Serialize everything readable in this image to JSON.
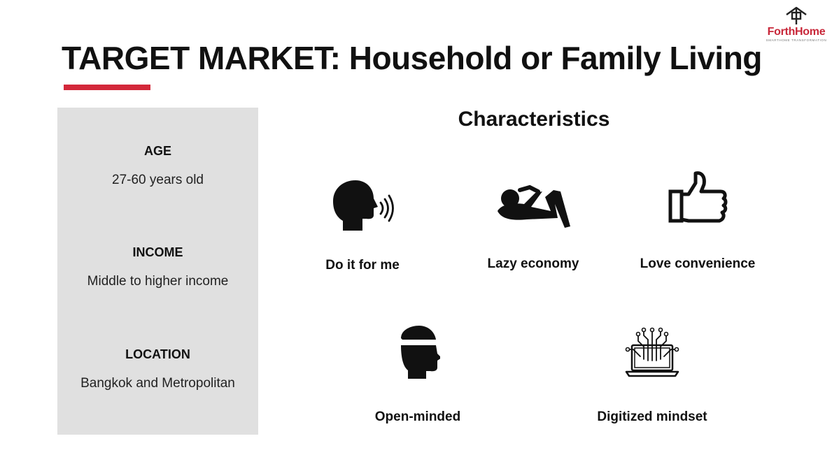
{
  "slide": {
    "title": "TARGET MARKET: Household or Family Living",
    "accent_color": "#d3283a"
  },
  "logo": {
    "name": "ForthHome",
    "tagline": "SMARTHOME TRANSFORMATION",
    "icon": "house-icon",
    "color": "#c8283a"
  },
  "info_panel": {
    "background": "#e0e0e0",
    "items": [
      {
        "label": "AGE",
        "value": "27-60 years old"
      },
      {
        "label": "INCOME",
        "value": "Middle to higher income"
      },
      {
        "label": "LOCATION",
        "value": "Bangkok and Metropolitan"
      }
    ]
  },
  "characteristics": {
    "heading": "Characteristics",
    "items": [
      {
        "label": "Do it for me",
        "icon": "speaking-head-icon"
      },
      {
        "label": "Lazy economy",
        "icon": "reclining-person-icon"
      },
      {
        "label": "Love convenience",
        "icon": "thumbs-up-icon"
      },
      {
        "label": "Open-minded",
        "icon": "open-head-icon"
      },
      {
        "label": "Digitized mindset",
        "icon": "laptop-circuit-icon"
      }
    ]
  }
}
